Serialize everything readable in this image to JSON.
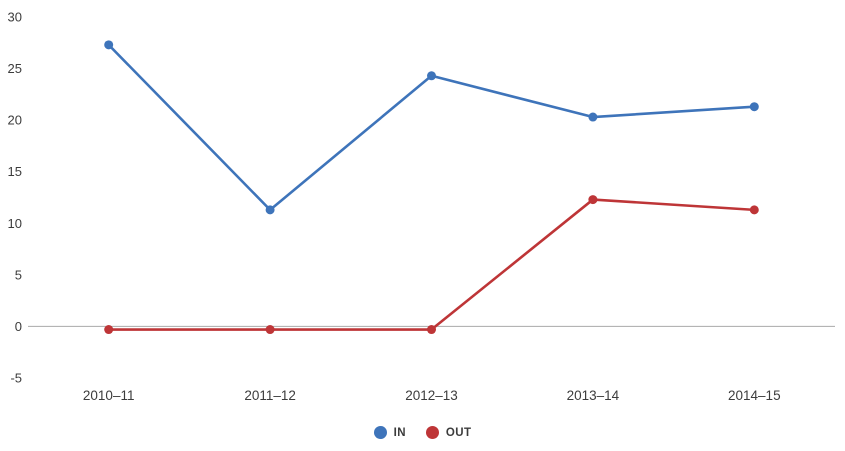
{
  "chart_data": {
    "type": "line",
    "title": "",
    "xlabel": "",
    "ylabel": "",
    "categories": [
      "2010–11",
      "2011–12",
      "2012–13",
      "2013–14",
      "2014–15"
    ],
    "series": [
      {
        "name": "IN",
        "color": "#3E74BA",
        "values": [
          27.3,
          11.3,
          24.3,
          20.3,
          21.3
        ]
      },
      {
        "name": "OUT",
        "color": "#BE3537",
        "values": [
          -0.3,
          -0.3,
          -0.3,
          12.3,
          11.3
        ]
      }
    ],
    "ylim": [
      -5,
      30
    ],
    "yticks": [
      -5,
      0,
      5,
      10,
      15,
      20,
      25,
      30
    ],
    "grid": false,
    "zero_baseline": true,
    "legend_position": "bottom",
    "axis_text_color": "#3c3c3c",
    "baseline_color": "#aaaaaa"
  }
}
